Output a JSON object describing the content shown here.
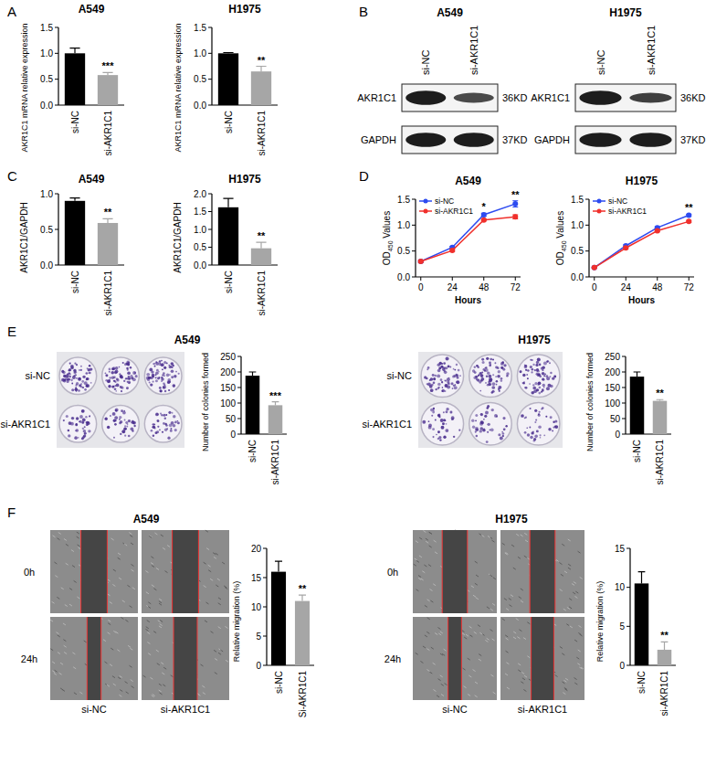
{
  "panel_labels": [
    "A",
    "B",
    "C",
    "D",
    "E",
    "F"
  ],
  "blots": [
    {
      "title": "A549",
      "lanes": [
        "si-NC",
        "si-AKR1C1"
      ],
      "rows": [
        {
          "protein": "AKR1C1",
          "size": "36KD"
        },
        {
          "protein": "GAPDH",
          "size": "37KD"
        }
      ]
    },
    {
      "title": "H1975",
      "lanes": [
        "si-NC",
        "si-AKR1C1"
      ],
      "rows": [
        {
          "protein": "AKR1C1",
          "size": "36KD"
        },
        {
          "protein": "GAPDH",
          "size": "37KD"
        }
      ]
    }
  ],
  "colony_images": [
    {
      "title": "A549",
      "conditions": [
        "si-NC",
        "si-AKR1C1"
      ]
    },
    {
      "title": "H1975",
      "conditions": [
        "si-NC",
        "si-AKR1C1"
      ]
    }
  ],
  "wound_images": [
    {
      "title": "A549",
      "times": [
        "0h",
        "24h"
      ],
      "conditions": [
        "si-NC",
        "si-AKR1C1"
      ]
    },
    {
      "title": "H1975",
      "times": [
        "0h",
        "24h"
      ],
      "conditions": [
        "si-NC",
        "si-AKR1C1"
      ]
    }
  ],
  "chart_data": [
    {
      "type": "bar",
      "title": "A549",
      "y_label": "AKR1C1 mRNA relative expression",
      "categories": [
        "si-NC",
        "si-AKR1C1"
      ],
      "values": [
        1.0,
        0.58
      ],
      "errors": [
        0.1,
        0.05
      ],
      "colors": [
        "#000000",
        "#a6a6a6"
      ],
      "ylim": [
        0,
        1.5
      ],
      "yticks": [
        {
          "value": 0,
          "label": "0.0"
        },
        0.5,
        {
          "value": 1,
          "label": "1.0"
        },
        1.5
      ],
      "annotations": [
        {
          "category": "si-AKR1C1",
          "text": "***"
        }
      ]
    },
    {
      "type": "bar",
      "title": "H1975",
      "y_label": "AKR1C1 mRNA relative expression",
      "categories": [
        "si-NC",
        "si-AKR1C1"
      ],
      "values": [
        1.0,
        0.65
      ],
      "errors": [
        0.015,
        0.1
      ],
      "colors": [
        "#000000",
        "#a6a6a6"
      ],
      "ylim": [
        0,
        1.5
      ],
      "yticks": [
        {
          "value": 0,
          "label": "0.0"
        },
        0.5,
        {
          "value": 1,
          "label": "1.0"
        },
        1.5
      ],
      "annotations": [
        {
          "category": "si-AKR1C1",
          "text": "**"
        }
      ]
    },
    {
      "type": "bar",
      "title": "A549",
      "y_label": "AKR1C1/GAPDH",
      "categories": [
        "si-NC",
        "si-AKR1C1"
      ],
      "values": [
        0.9,
        0.59
      ],
      "errors": [
        0.04,
        0.06
      ],
      "colors": [
        "#000000",
        "#a6a6a6"
      ],
      "ylim": [
        0,
        1
      ],
      "yticks": [
        {
          "value": 0,
          "label": "0.0"
        },
        0.5,
        {
          "value": 1,
          "label": "1.0"
        }
      ],
      "annotations": [
        {
          "category": "si-AKR1C1",
          "text": "**"
        }
      ]
    },
    {
      "type": "bar",
      "title": "H1975",
      "y_label": "AKR1C1/GAPDH",
      "categories": [
        "si-NC",
        "si-AKR1C1"
      ],
      "values": [
        1.62,
        0.47
      ],
      "errors": [
        0.25,
        0.17
      ],
      "colors": [
        "#000000",
        "#a6a6a6"
      ],
      "ylim": [
        0,
        2
      ],
      "yticks": [
        {
          "value": 0,
          "label": "0.0"
        },
        0.5,
        {
          "value": 1,
          "label": "1.0"
        },
        1.5,
        {
          "value": 2,
          "label": "2.0"
        }
      ],
      "annotations": [
        {
          "category": "si-AKR1C1",
          "text": "**"
        }
      ]
    },
    {
      "type": "line",
      "title": "A549",
      "x_label": "Hours",
      "y_label": "OD450 Values",
      "x": [
        0,
        24,
        48,
        72
      ],
      "xlim": [
        -4,
        76
      ],
      "xticks": [
        0,
        24,
        48,
        72
      ],
      "ylim": [
        0,
        1.5
      ],
      "yticks": [
        {
          "value": 0,
          "label": "0.0"
        },
        0.5,
        {
          "value": 1,
          "label": "1.0"
        },
        1.5
      ],
      "marker": "circle",
      "legend": "top-left",
      "series": [
        {
          "name": "si-NC",
          "color": "#2d4bf0",
          "values": [
            0.3,
            0.57,
            1.2,
            1.41
          ],
          "errors": [
            0.02,
            0.02,
            0.03,
            0.06
          ]
        },
        {
          "name": "si-AKR1C1",
          "color": "#f0302c",
          "values": [
            0.3,
            0.51,
            1.1,
            1.16
          ],
          "errors": [
            0.02,
            0.02,
            0.02,
            0.04
          ]
        }
      ],
      "annotations": [
        {
          "x": 48,
          "text": "*"
        },
        {
          "x": 72,
          "text": "**"
        }
      ]
    },
    {
      "type": "line",
      "title": "H1975",
      "x_label": "Hours",
      "y_label": "OD450 Values",
      "x": [
        0,
        24,
        48,
        72
      ],
      "xlim": [
        -4,
        76
      ],
      "xticks": [
        0,
        24,
        48,
        72
      ],
      "ylim": [
        0,
        1.5
      ],
      "yticks": [
        {
          "value": 0,
          "label": "0.0"
        },
        0.5,
        {
          "value": 1,
          "label": "1.0"
        },
        1.5
      ],
      "marker": "circle",
      "legend": "top-left",
      "series": [
        {
          "name": "si-NC",
          "color": "#2d4bf0",
          "values": [
            0.18,
            0.6,
            0.95,
            1.19
          ],
          "errors": [
            0.01,
            0.02,
            0.02,
            0.02
          ]
        },
        {
          "name": "si-AKR1C1",
          "color": "#f0302c",
          "values": [
            0.18,
            0.56,
            0.89,
            1.07
          ],
          "errors": [
            0.01,
            0.02,
            0.02,
            0.02
          ]
        }
      ],
      "annotations": [
        {
          "x": 72,
          "text": "**"
        }
      ]
    },
    {
      "type": "bar",
      "y_label": "Number of colonies formed",
      "categories": [
        "si-NC",
        "si-AKR1C1"
      ],
      "values": [
        188,
        93
      ],
      "errors": [
        12,
        11
      ],
      "colors": [
        "#000000",
        "#a6a6a6"
      ],
      "ylim": [
        0,
        250
      ],
      "yticks": [
        0,
        50,
        100,
        150,
        200,
        250
      ],
      "annotations": [
        {
          "category": "si-AKR1C1",
          "text": "***"
        }
      ]
    },
    {
      "type": "bar",
      "y_label": "Number of colonies formed",
      "categories": [
        "si-NC",
        "si-AKR1C1"
      ],
      "values": [
        185,
        107
      ],
      "errors": [
        15,
        4
      ],
      "colors": [
        "#000000",
        "#a6a6a6"
      ],
      "ylim": [
        0,
        250
      ],
      "yticks": [
        0,
        50,
        100,
        150,
        200,
        250
      ],
      "annotations": [
        {
          "category": "si-AKR1C1",
          "text": "**"
        }
      ]
    },
    {
      "type": "bar",
      "y_label": "Relative migration (%)",
      "categories": [
        "si-NC",
        "Si-AKR1C1"
      ],
      "values": [
        16,
        11
      ],
      "errors": [
        1.8,
        1
      ],
      "colors": [
        "#000000",
        "#a6a6a6"
      ],
      "ylim": [
        0,
        20
      ],
      "yticks": [
        0,
        5,
        10,
        15,
        20
      ],
      "annotations": [
        {
          "category": "Si-AKR1C1",
          "text": "**"
        }
      ]
    },
    {
      "type": "bar",
      "y_label": "Relative migration (%)",
      "categories": [
        "si-NC",
        "si-AKR1C1"
      ],
      "values": [
        10.5,
        2
      ],
      "errors": [
        1.5,
        1
      ],
      "colors": [
        "#000000",
        "#a6a6a6"
      ],
      "ylim": [
        0,
        15
      ],
      "yticks": [
        0,
        5,
        10,
        15
      ],
      "annotations": [
        {
          "category": "si-AKR1C1",
          "text": "**"
        }
      ]
    }
  ]
}
